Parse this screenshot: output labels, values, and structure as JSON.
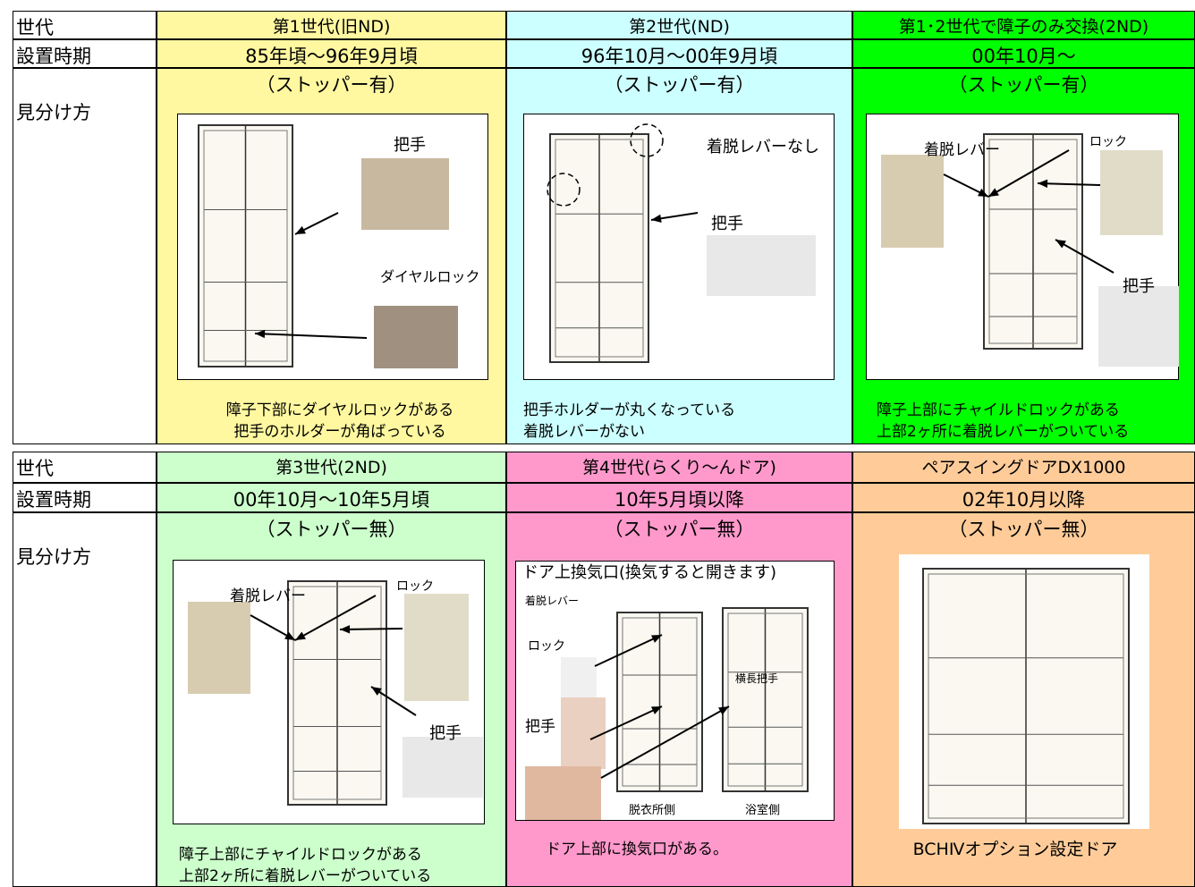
{
  "tables": [
    {
      "generation_label": "世代",
      "period_label": "設置時期",
      "identify_label": "見分け方",
      "columns": [
        {
          "generation": "第1世代(旧ND)",
          "period": "85年頃～96年9月頃",
          "stopper": "（ストッパー有）",
          "figure_labels": [
            "把手",
            "ダイヤルロック"
          ],
          "caption": [
            "障子下部にダイヤルロックがある",
            "把手のホルダーが角ばっている"
          ]
        },
        {
          "generation": "第2世代(ND)",
          "period": "96年10月～00年9月頃",
          "stopper": "（ストッパー有）",
          "figure_labels": [
            "着脱レバーなし",
            "把手"
          ],
          "caption": [
            "把手ホルダーが丸くなっている",
            "着脱レバーがない"
          ]
        },
        {
          "generation": "第1･2世代で障子のみ交換(2ND)",
          "period": "00年10月～",
          "stopper": "（ストッパー有）",
          "figure_labels": [
            "着脱レバー",
            "ロック",
            "把手"
          ],
          "caption": [
            "障子上部にチャイルドロックがある",
            "上部2ヶ所に着脱レバーがついている"
          ]
        }
      ]
    },
    {
      "generation_label": "世代",
      "period_label": "設置時期",
      "identify_label": "見分け方",
      "columns": [
        {
          "generation": "第3世代(2ND)",
          "period": "00年10月～10年5月頃",
          "stopper": "（ストッパー無）",
          "figure_labels": [
            "着脱レバー",
            "ロック",
            "把手"
          ],
          "caption": [
            "障子上部にチャイルドロックがある",
            "上部2ヶ所に着脱レバーがついている"
          ]
        },
        {
          "generation": "第4世代(らくり～んドア)",
          "period": "10年5月頃以降",
          "stopper": "（ストッパー無）",
          "figure_labels": [
            "ドア上換気口(換気すると開きます)",
            "着脱レバー",
            "ロック",
            "把手",
            "横長把手",
            "脱衣所側",
            "浴室側"
          ],
          "caption": [
            "ドア上部に換気口がある。"
          ]
        },
        {
          "generation": "ペアスイングドアDX1000",
          "period": "02年10月以降",
          "stopper": "（ストッパー無）",
          "figure_labels": [],
          "caption": [
            "BCHⅣオプション設定ドア"
          ]
        }
      ]
    }
  ]
}
